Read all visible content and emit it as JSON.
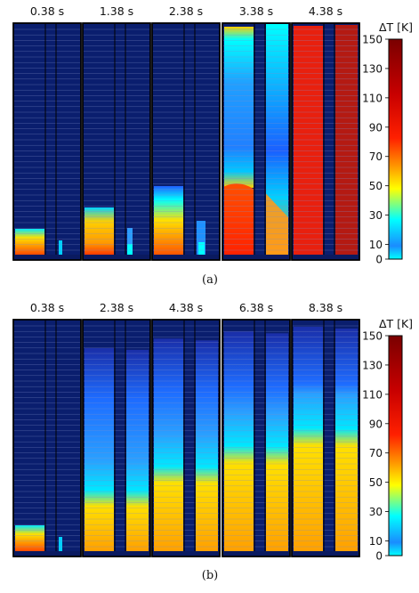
{
  "figure": {
    "colorbar_label": "ΔT [K]",
    "colorbar_ticks": [
      "150",
      "130",
      "110",
      "90",
      "70",
      "50",
      "30",
      "10",
      "0"
    ],
    "colorbar_tick_values": [
      150,
      130,
      110,
      90,
      70,
      50,
      30,
      10,
      0
    ],
    "colormap": [
      "#00008f",
      "#0000ff",
      "#0080ff",
      "#00ffff",
      "#80ff80",
      "#ffff00",
      "#ff8000",
      "#ff0000",
      "#800000"
    ],
    "background_color": "#0a1e6e"
  },
  "panels": [
    {
      "caption": "(a)",
      "times": [
        "0.38 s",
        "1.38 s",
        "2.38 s",
        "3.38 s",
        "4.38 s"
      ]
    },
    {
      "caption": "(b)",
      "times": [
        "0.38 s",
        "2.38 s",
        "4.38 s",
        "6.38 s",
        "8.38 s"
      ]
    }
  ]
}
